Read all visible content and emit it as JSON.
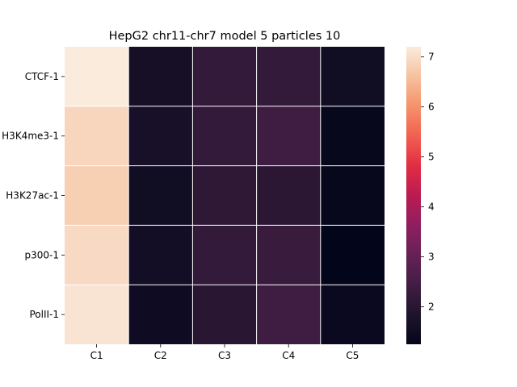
{
  "chart_data": {
    "type": "heatmap",
    "title": "HepG2 chr11-chr7 model 5 particles 10",
    "xlabel": "",
    "ylabel": "",
    "x_categories": [
      "C1",
      "C2",
      "C3",
      "C4",
      "C5"
    ],
    "y_categories": [
      "CTCF-1",
      "H3K4me3-1",
      "H3K27ac-1",
      "p300-1",
      "PolII-1"
    ],
    "values": [
      [
        7.2,
        1.65,
        2.2,
        2.2,
        1.55
      ],
      [
        6.9,
        1.7,
        2.2,
        2.4,
        1.35
      ],
      [
        6.8,
        1.55,
        2.1,
        2.05,
        1.35
      ],
      [
        6.95,
        1.6,
        2.2,
        2.3,
        1.25
      ],
      [
        7.1,
        1.5,
        2.0,
        2.4,
        1.4
      ]
    ],
    "colorbar": {
      "vmin": 1.25,
      "vmax": 7.2,
      "ticks": [
        2,
        3,
        4,
        5,
        6,
        7
      ],
      "colormap": "rocket"
    },
    "grid": true,
    "gridline_color": "#ffffff"
  }
}
